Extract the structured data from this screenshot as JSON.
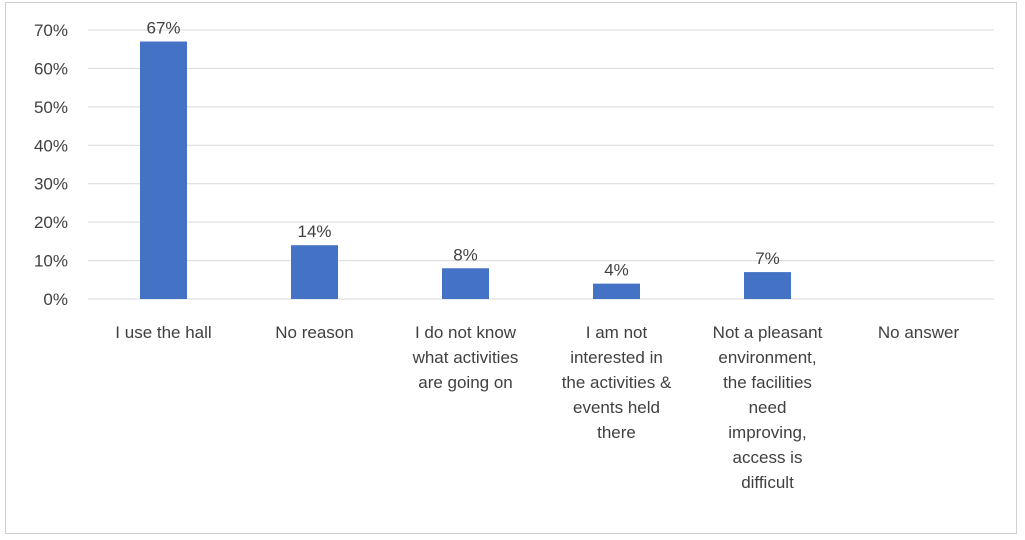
{
  "chart_data": {
    "type": "bar",
    "categories": [
      "I use the hall",
      "No reason",
      "I do not know what activities are going on",
      "I am not interested in the activities & events held there",
      "Not a pleasant environment, the facilities need improving, access is difficult",
      "No answer"
    ],
    "category_lines": [
      [
        "I use the hall"
      ],
      [
        "No reason"
      ],
      [
        "I do not know",
        "what activities",
        "are going on"
      ],
      [
        "I am not",
        "interested in",
        "the activities &",
        "events held",
        "there"
      ],
      [
        "Not a pleasant",
        "environment,",
        "the facilities",
        "need",
        "improving,",
        "access is",
        "difficult"
      ],
      [
        "No answer"
      ]
    ],
    "values": [
      67,
      14,
      8,
      4,
      7,
      null
    ],
    "data_labels": [
      "67%",
      "14%",
      "8%",
      "4%",
      "7%",
      ""
    ],
    "y_ticks": [
      0,
      10,
      20,
      30,
      40,
      50,
      60,
      70
    ],
    "y_tick_labels": [
      "0%",
      "10%",
      "20%",
      "30%",
      "40%",
      "50%",
      "60%",
      "70%"
    ],
    "ylim": [
      0,
      70
    ],
    "grid": true,
    "bar_color": "#4472C4",
    "grid_color": "#d9d9d9",
    "text_color": "#404040"
  }
}
